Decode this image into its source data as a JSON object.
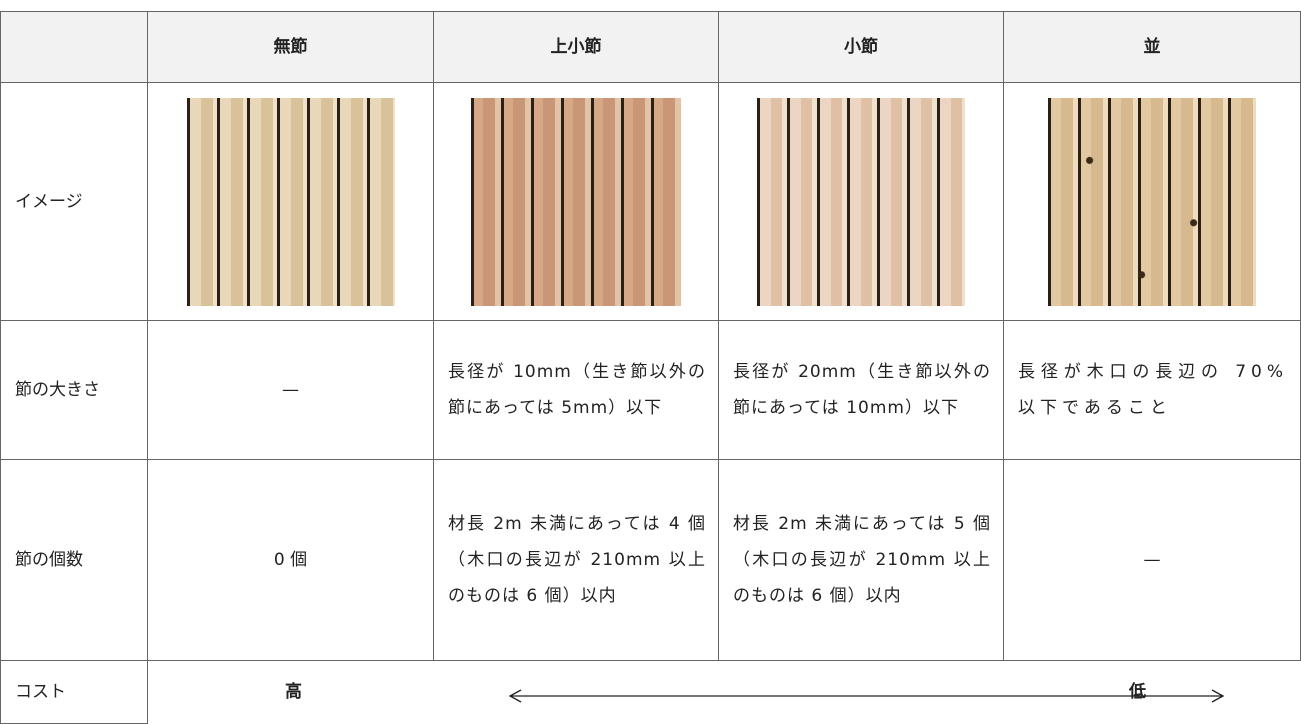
{
  "header": {
    "columns": [
      "無節",
      "上小節",
      "小節",
      "並"
    ]
  },
  "rows": [
    {
      "label": "イメージ"
    },
    {
      "label": "節の大きさ",
      "cells": [
        "—",
        "長径が 10mm（生き節以外の節にあっては 5mm）以下",
        "長径が 20mm（生き節以外の節にあっては 10mm）以下",
        "長径が木口の長辺の 70%以下であること"
      ]
    },
    {
      "label": "節の個数",
      "cells": [
        "0 個",
        "材長 2m 未満にあっては 4 個（木口の長辺が 210mm 以上のものは 6 個）以内",
        "材長 2m 未満にあっては 5 個（木口の長辺が 210mm 以上のものは 6 個）以内",
        "—"
      ]
    },
    {
      "label": "コスト",
      "high": "高",
      "low": "低"
    }
  ]
}
